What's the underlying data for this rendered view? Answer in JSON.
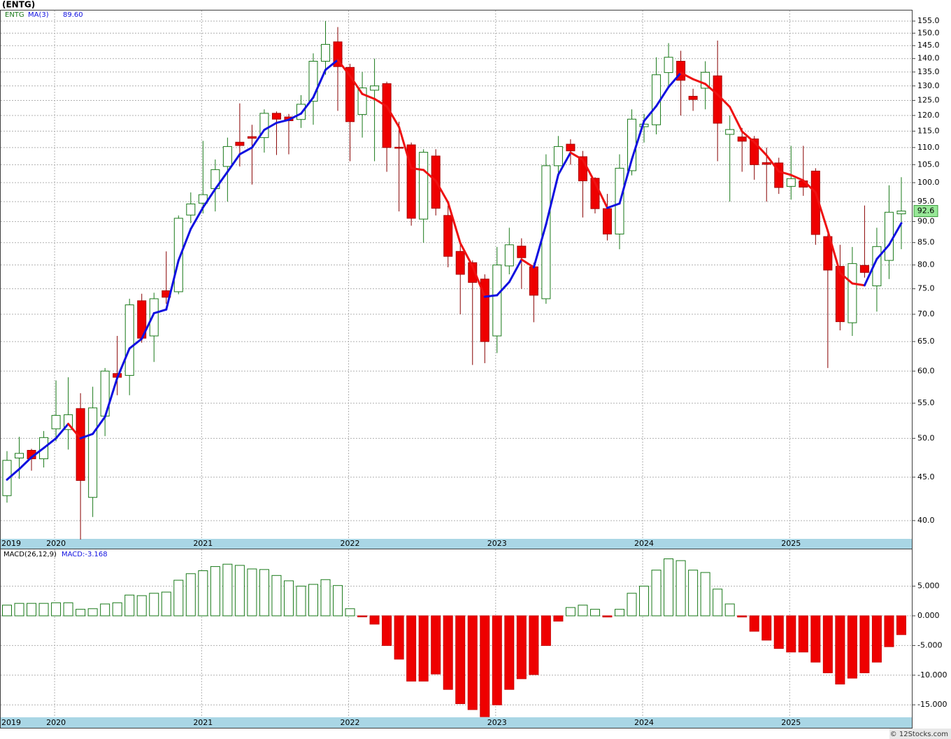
{
  "title": "(ENTG)",
  "footer": "© 12Stocks.com",
  "chart_data": [
    {
      "type": "candlestick",
      "symbol": "ENTG",
      "log_scale": true,
      "grid": true,
      "up_color": "#1a7a1a",
      "down_color": "#ee0000",
      "categories": [
        "2019",
        null,
        null,
        null,
        "2020",
        null,
        null,
        null,
        null,
        null,
        null,
        null,
        null,
        null,
        null,
        null,
        "2021",
        null,
        null,
        null,
        null,
        null,
        null,
        null,
        null,
        null,
        null,
        null,
        "2022",
        null,
        null,
        null,
        null,
        null,
        null,
        null,
        null,
        null,
        null,
        null,
        "2023",
        null,
        null,
        null,
        null,
        null,
        null,
        null,
        null,
        null,
        null,
        null,
        "2024",
        null,
        null,
        null,
        null,
        null,
        null,
        null,
        null,
        null,
        null,
        null,
        "2025",
        null,
        null,
        null,
        null,
        null,
        null,
        null,
        null,
        null
      ],
      "open": [
        42.8,
        47.4,
        48.4,
        47.3,
        51.3,
        51.2,
        54.2,
        42.6,
        53.1,
        59.6,
        59.3,
        72.6,
        66.0,
        74.6,
        74.4,
        91.6,
        94.6,
        98.4,
        104.5,
        111.6,
        113.3,
        113.0,
        120.7,
        119.5,
        118.7,
        124.7,
        139,
        146.5,
        136.7,
        120.3,
        128.5,
        130.8,
        110.1,
        110.8,
        90.6,
        107.5,
        91.5,
        83,
        80.5,
        77,
        66,
        79.8,
        84.2,
        79.6,
        73,
        104.7,
        111,
        107.3,
        101.2,
        93.2,
        87,
        103.3,
        116.4,
        117,
        134.8,
        139,
        126.4,
        129.2,
        133.6,
        114,
        113.2,
        112.6,
        105.6,
        105.5,
        99,
        100.5,
        103.2,
        86.4,
        79.7,
        68.4,
        79.9,
        75.6,
        81,
        91.9
      ],
      "high": [
        48.3,
        50.2,
        48.6,
        51.0,
        58.5,
        59.0,
        56.5,
        57.5,
        60.5,
        66.0,
        73.0,
        74.0,
        74.2,
        83.0,
        91.5,
        97.4,
        112,
        106.5,
        113,
        124.0,
        117,
        122.0,
        121.3,
        120.5,
        126.8,
        142,
        155,
        152.5,
        138,
        135,
        140,
        131.5,
        118,
        111.5,
        109.5,
        109.5,
        94,
        85,
        81,
        78,
        84,
        88.5,
        86,
        80.5,
        108,
        113.5,
        112.5,
        109,
        101.5,
        97,
        108,
        122,
        120.5,
        140.5,
        146,
        143,
        129,
        139,
        147,
        120,
        116,
        113.5,
        110,
        107,
        110.5,
        110.5,
        104,
        87,
        84.5,
        84,
        94,
        88.5,
        99.3,
        101.5
      ],
      "low": [
        42.0,
        44.8,
        45.8,
        46.2,
        49.6,
        48.5,
        38.0,
        40.4,
        50.3,
        56.2,
        56.2,
        64.8,
        61.5,
        72.0,
        73.9,
        89.6,
        92,
        92.5,
        95,
        104.5,
        99.5,
        108.5,
        107.8,
        108.0,
        116.0,
        117,
        134,
        121.5,
        106,
        113,
        106,
        103,
        92.5,
        89,
        85,
        91.5,
        79.5,
        70,
        61,
        61.3,
        63,
        78,
        75,
        68.5,
        72,
        101.5,
        105,
        91,
        92,
        85.5,
        83.5,
        102,
        111.5,
        114,
        129.5,
        120,
        121.5,
        122,
        106,
        95,
        103,
        100.8,
        95,
        97,
        95.5,
        96.5,
        84.5,
        60.5,
        67,
        66,
        77.3,
        70.5,
        77,
        83.5
      ],
      "close": [
        47.1,
        48.0,
        47.3,
        50.1,
        53.2,
        53.3,
        44.6,
        54.3,
        60.0,
        59.0,
        71.8,
        65.6,
        73.0,
        73.3,
        90.8,
        94.4,
        96.8,
        103.6,
        110.3,
        110.6,
        112.8,
        120.7,
        118.8,
        118.3,
        123.7,
        139,
        145.5,
        137,
        118,
        129.3,
        130,
        110,
        109.8,
        90.8,
        108.6,
        93.3,
        81.9,
        78,
        76.3,
        65,
        80,
        84.5,
        81.6,
        73.7,
        104.7,
        110.3,
        109,
        100.5,
        93.2,
        87,
        104,
        118.8,
        117.2,
        134,
        140.5,
        132,
        125.3,
        134.9,
        117.5,
        115.5,
        111.9,
        105,
        105.1,
        98.7,
        101.1,
        98.8,
        86.9,
        78.9,
        68.6,
        80.3,
        78.4,
        84.1,
        92.3,
        92.6
      ],
      "ma": {
        "name": "MA(3)",
        "header_value": "89.60",
        "up_color": "#1010e0",
        "down_color": "#ee1111",
        "values": [
          44.7,
          46,
          47.5,
          48.7,
          50,
          52,
          50,
          50.6,
          53,
          58.9,
          63.8,
          65.5,
          70.2,
          70.9,
          81,
          88.2,
          93.5,
          98.3,
          103,
          108,
          110,
          115.4,
          117.6,
          118.6,
          120.6,
          126,
          135.8,
          139.5,
          133.6,
          127.2,
          125.5,
          123,
          116.3,
          104,
          103.5,
          100.5,
          94.8,
          84.9,
          79.7,
          73.4,
          73.7,
          76.4,
          81.2,
          79.5,
          89.3,
          102.2,
          108.5,
          106.4,
          100,
          93.4,
          94.5,
          106.5,
          118.2,
          123.1,
          129.6,
          134.7,
          132.4,
          130.7,
          127.0,
          122.8,
          114.9,
          111.6,
          107.7,
          103.1,
          102.1,
          100.6,
          97.4,
          87.7,
          78.3,
          76.1,
          75.7,
          81.3,
          84.5,
          89.6
        ]
      },
      "ylim": [
        38.07,
        159.5
      ],
      "yticks": [
        {
          "value": 155,
          "label": "155.0"
        },
        {
          "value": 150,
          "label": "150.0"
        },
        {
          "value": 145,
          "label": "145.0"
        },
        {
          "value": 140,
          "label": "140.0"
        },
        {
          "value": 135,
          "label": "135.0"
        },
        {
          "value": 130,
          "label": "130.0"
        },
        {
          "value": 125,
          "label": "125.0"
        },
        {
          "value": 120,
          "label": "120.0"
        },
        {
          "value": 115,
          "label": "115.0"
        },
        {
          "value": 110,
          "label": "110.0"
        },
        {
          "value": 105,
          "label": "105.0"
        },
        {
          "value": 100,
          "label": "100.0"
        },
        {
          "value": 95,
          "label": "95.0"
        },
        {
          "value": 90,
          "label": "90.0"
        },
        {
          "value": 85,
          "label": "85.0"
        },
        {
          "value": 80,
          "label": "80.0"
        },
        {
          "value": 75,
          "label": "75.0"
        },
        {
          "value": 70,
          "label": "70.0"
        },
        {
          "value": 65,
          "label": "65.0"
        },
        {
          "value": 60,
          "label": "60.0"
        },
        {
          "value": 55,
          "label": "55.0"
        },
        {
          "value": 50,
          "label": "50.0"
        },
        {
          "value": 45,
          "label": "45.0"
        },
        {
          "value": 40,
          "label": "40.0"
        }
      ]
    },
    {
      "type": "bar",
      "name": "MACD(26,12,9)",
      "header_value": "MACD:-3.168",
      "grid": true,
      "up_color": "#1a7a1a",
      "down_color": "#ee0000",
      "categories": [
        "2019",
        null,
        null,
        null,
        "2020",
        null,
        null,
        null,
        null,
        null,
        null,
        null,
        null,
        null,
        null,
        null,
        "2021",
        null,
        null,
        null,
        null,
        null,
        null,
        null,
        null,
        null,
        null,
        null,
        "2022",
        null,
        null,
        null,
        null,
        null,
        null,
        null,
        null,
        null,
        null,
        null,
        "2023",
        null,
        null,
        null,
        null,
        null,
        null,
        null,
        null,
        null,
        null,
        null,
        "2024",
        null,
        null,
        null,
        null,
        null,
        null,
        null,
        null,
        null,
        null,
        null,
        "2025",
        null,
        null,
        null,
        null,
        null,
        null,
        null,
        null,
        null
      ],
      "values": [
        1.8,
        2.1,
        2.1,
        2.1,
        2.2,
        2.2,
        1.1,
        1.2,
        2.0,
        2.2,
        3.5,
        3.4,
        3.8,
        4.0,
        6.0,
        7.1,
        7.6,
        8.3,
        8.7,
        8.5,
        7.9,
        7.8,
        6.8,
        5.9,
        5.0,
        5.3,
        6.1,
        5.1,
        1.2,
        -0.1,
        -1.4,
        -5.0,
        -7.3,
        -11.0,
        -11.0,
        -9.8,
        -12.4,
        -14.8,
        -15.8,
        -17.0,
        -15.0,
        -12.4,
        -10.6,
        -9.9,
        -5.0,
        -0.9,
        1.4,
        1.8,
        1.1,
        -0.2,
        1.1,
        3.8,
        5.0,
        7.7,
        9.6,
        9.3,
        7.7,
        7.3,
        4.5,
        2.0,
        -0.2,
        -2.6,
        -4.1,
        -5.5,
        -6.1,
        -6.1,
        -7.8,
        -9.6,
        -11.5,
        -10.5,
        -9.6,
        -7.8,
        -5.2,
        -3.168
      ],
      "ylim": [
        -17.1,
        11.2
      ],
      "yticks": [
        {
          "value": 5,
          "label": "5.000"
        },
        {
          "value": 0,
          "label": "0.000"
        },
        {
          "value": -5,
          "label": "-5.000"
        },
        {
          "value": -10,
          "label": "-10.000"
        },
        {
          "value": -15,
          "label": "-15.000"
        }
      ]
    }
  ]
}
